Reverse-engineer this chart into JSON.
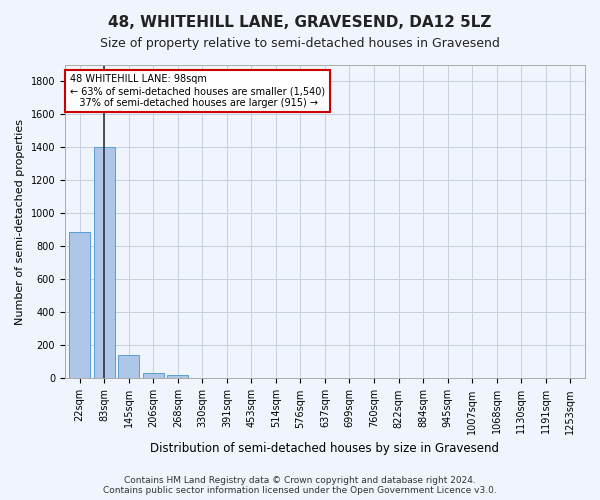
{
  "title": "48, WHITEHILL LANE, GRAVESEND, DA12 5LZ",
  "subtitle": "Size of property relative to semi-detached houses in Gravesend",
  "xlabel": "Distribution of semi-detached houses by size in Gravesend",
  "ylabel": "Number of semi-detached properties",
  "bin_labels": [
    "22sqm",
    "83sqm",
    "145sqm",
    "206sqm",
    "268sqm",
    "330sqm",
    "391sqm",
    "453sqm",
    "514sqm",
    "576sqm",
    "637sqm",
    "699sqm",
    "760sqm",
    "822sqm",
    "884sqm",
    "945sqm",
    "1007sqm",
    "1068sqm",
    "1130sqm",
    "1191sqm",
    "1253sqm"
  ],
  "bar_values": [
    890,
    1400,
    140,
    35,
    20,
    0,
    0,
    0,
    0,
    0,
    0,
    0,
    0,
    0,
    0,
    0,
    0,
    0,
    0,
    0,
    0
  ],
  "bar_color": "#aec6e8",
  "bar_edge_color": "#5a9fd4",
  "property_bin_index": 1,
  "annotation_text": "48 WHITEHILL LANE: 98sqm\n← 63% of semi-detached houses are smaller (1,540)\n   37% of semi-detached houses are larger (915) →",
  "annotation_box_color": "#ffffff",
  "annotation_box_edge_color": "#cc0000",
  "ylim": [
    0,
    1900
  ],
  "yticks": [
    0,
    200,
    400,
    600,
    800,
    1000,
    1200,
    1400,
    1600,
    1800
  ],
  "footer_line1": "Contains HM Land Registry data © Crown copyright and database right 2024.",
  "footer_line2": "Contains public sector information licensed under the Open Government Licence v3.0.",
  "bg_color": "#f0f4fc",
  "grid_color": "#c8d0e0",
  "vline_color": "#333333",
  "title_fontsize": 11,
  "subtitle_fontsize": 9,
  "axis_label_fontsize": 8,
  "tick_fontsize": 7,
  "footer_fontsize": 6.5
}
